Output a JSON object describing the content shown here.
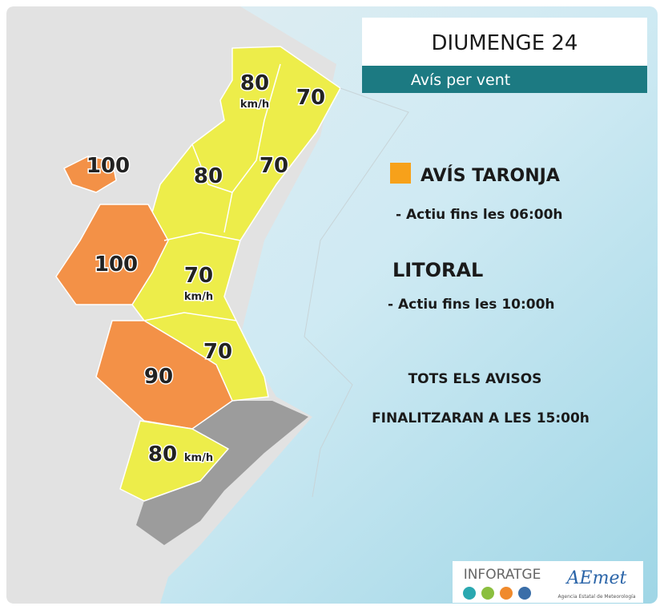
{
  "header": {
    "title": "DIUMENGE 24",
    "subtitle": "Avís per vent"
  },
  "warning": {
    "label": "AVÍS TARONJA",
    "note": "- Actiu fins les 06:00h"
  },
  "coast": {
    "label": "LITORAL",
    "note": "- Actiu fins les 10:00h"
  },
  "footer": {
    "line1": "TOTS ELS AVISOS",
    "line2": "FINALITZARAN A LES 15:00h"
  },
  "zones": [
    {
      "value": 80,
      "unit": "km/h"
    },
    {
      "value": 70
    },
    {
      "value": 100
    },
    {
      "value": 80
    },
    {
      "value": 70
    },
    {
      "value": 100
    },
    {
      "value": 70,
      "unit": "km/h"
    },
    {
      "value": 70
    },
    {
      "value": 90
    },
    {
      "value": 80,
      "unit": "km/h"
    }
  ],
  "logos": {
    "inforatge": "INFORATGE",
    "aemet": "AEmet",
    "aemet_caption": "Agencia Estatal de Meteorología"
  }
}
